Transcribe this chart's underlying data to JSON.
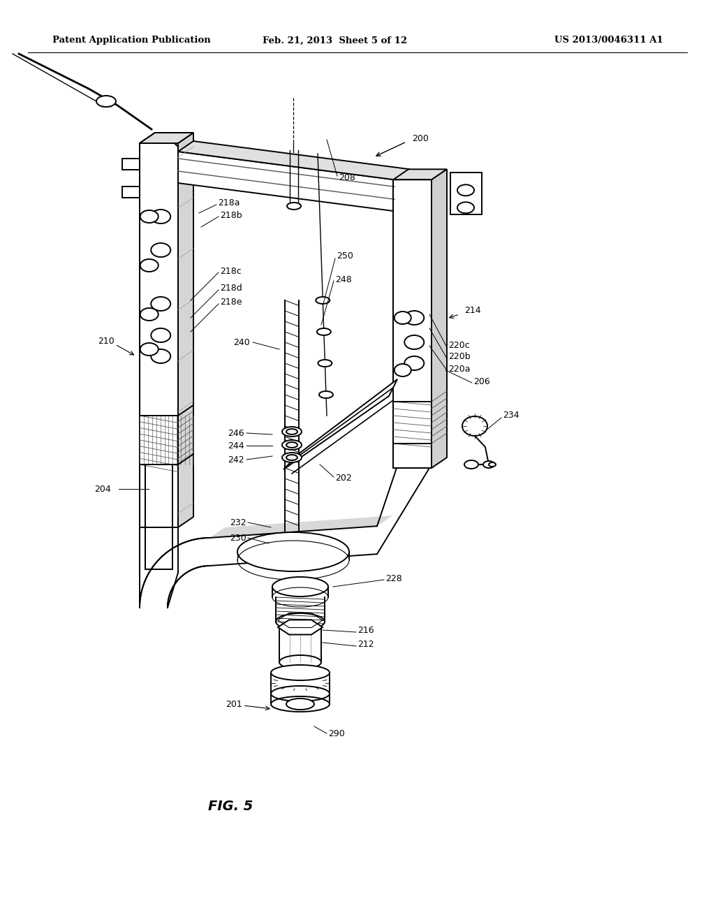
{
  "header_left": "Patent Application Publication",
  "header_center": "Feb. 21, 2013  Sheet 5 of 12",
  "header_right": "US 2013/0046311 A1",
  "fig_caption": "FIG. 5",
  "bg_color": "#ffffff",
  "lc": "#000000",
  "lw": 1.4,
  "lt": 0.8,
  "fs": 9.0,
  "header_fs": 9.5,
  "caption_fs": 14
}
